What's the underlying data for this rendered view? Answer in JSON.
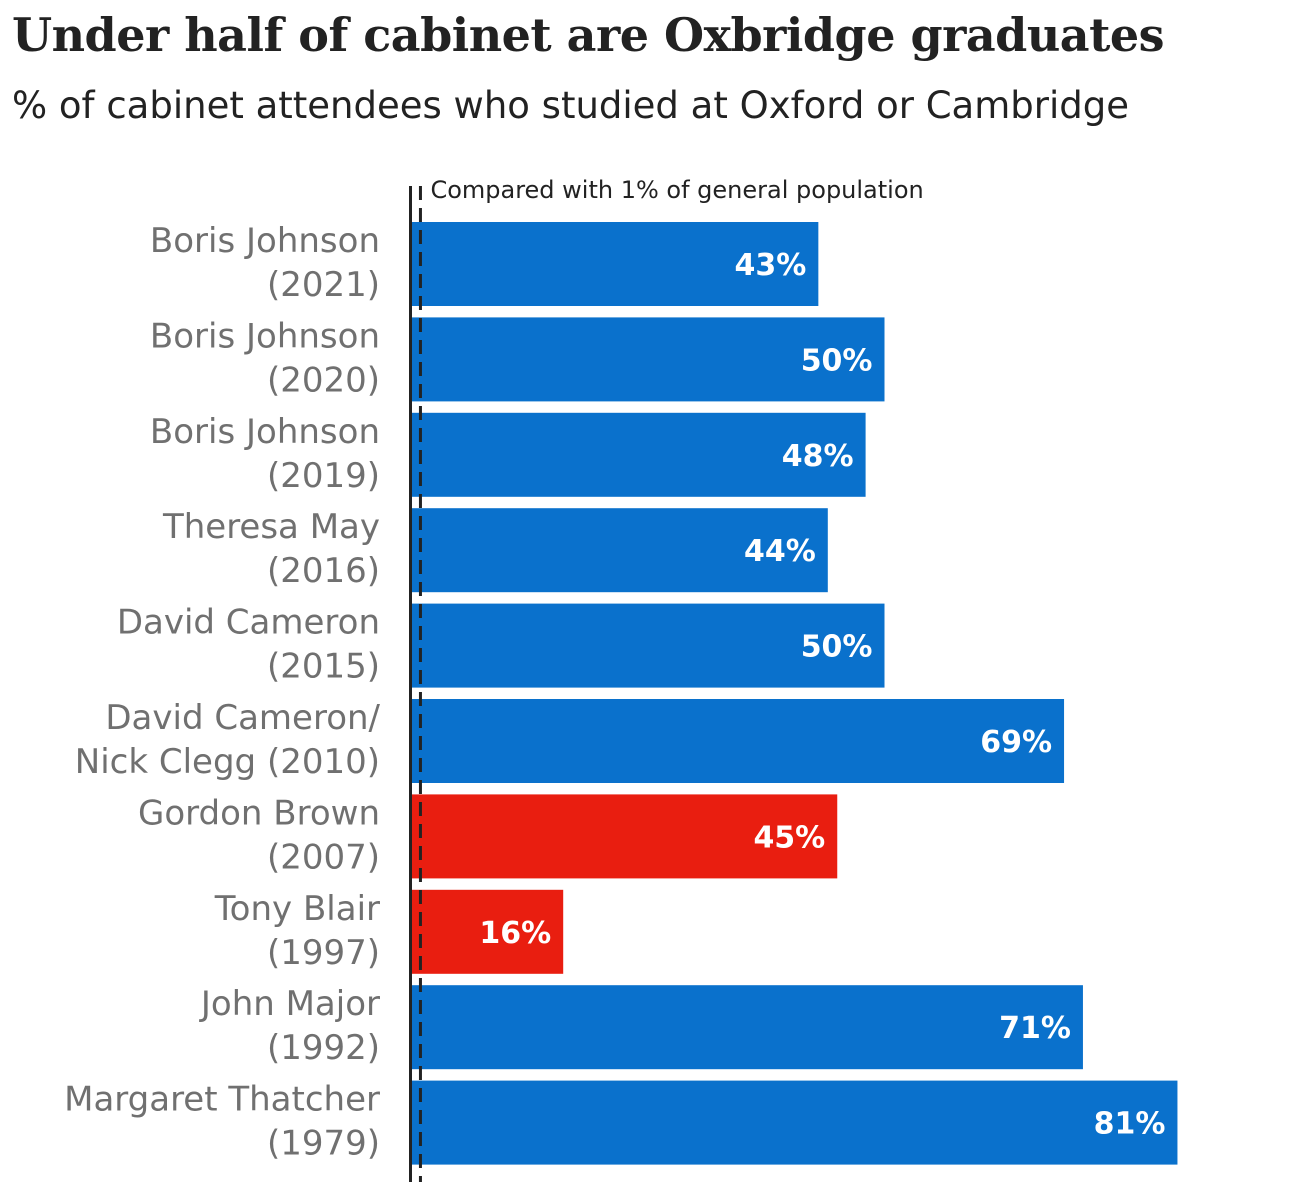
{
  "title": "Under half of cabinet are Oxbridge graduates",
  "subtitle": "% of cabinet attendees who studied at Oxford or Cambridge",
  "colors": {
    "conservative": "#0a71cc",
    "labour": "#e91e10",
    "text": "#222222",
    "label": "#707070"
  },
  "chart_data": {
    "type": "bar",
    "orientation": "horizontal",
    "unit": "%",
    "xlim": [
      0,
      81
    ],
    "reference_line": {
      "value": 1,
      "label": "Compared with 1% of general population"
    },
    "categories": [
      [
        "Boris Johnson",
        "(2021)"
      ],
      [
        "Boris Johnson",
        "(2020)"
      ],
      [
        "Boris Johnson",
        "(2019)"
      ],
      [
        "Theresa May",
        "(2016)"
      ],
      [
        "David Cameron",
        "(2015)"
      ],
      [
        "David Cameron/",
        "Nick Clegg (2010)"
      ],
      [
        "Gordon Brown",
        "(2007)"
      ],
      [
        "Tony Blair",
        "(1997)"
      ],
      [
        "John Major",
        "(1992)"
      ],
      [
        "Margaret Thatcher",
        "(1979)"
      ]
    ],
    "values": [
      43,
      50,
      48,
      44,
      50,
      69,
      45,
      16,
      71,
      81
    ],
    "value_labels": [
      "43%",
      "50%",
      "48%",
      "44%",
      "50%",
      "69%",
      "45%",
      "16%",
      "71%",
      "81%"
    ],
    "bar_colors": [
      "conservative",
      "conservative",
      "conservative",
      "conservative",
      "conservative",
      "conservative",
      "labour",
      "labour",
      "conservative",
      "conservative"
    ]
  }
}
